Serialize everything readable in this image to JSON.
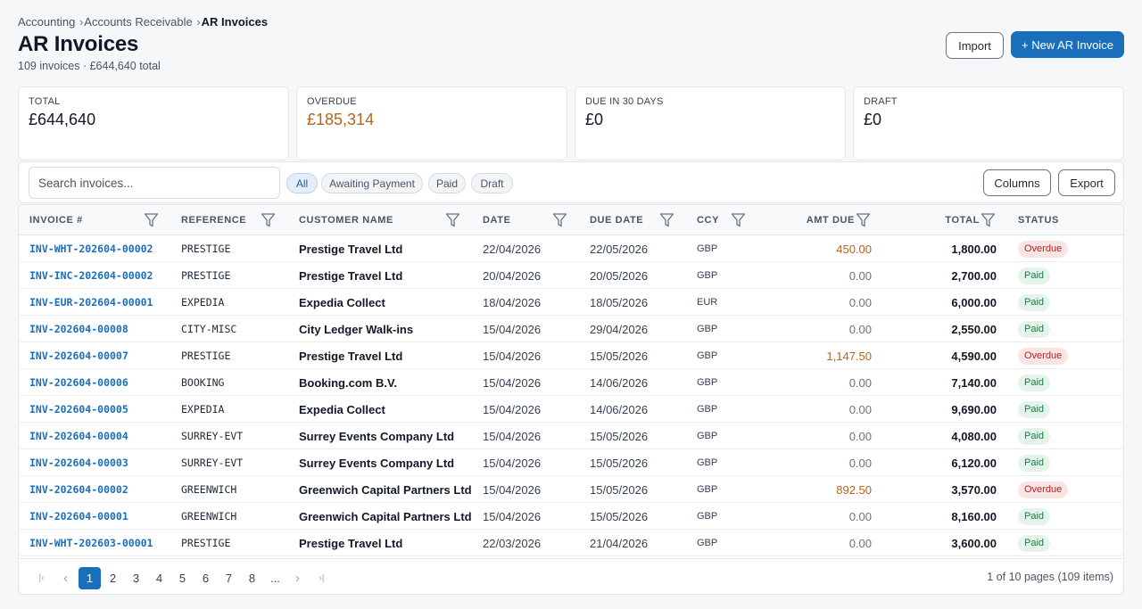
{
  "breadcrumb": {
    "items": [
      "Accounting",
      "Accounts Receivable"
    ],
    "current": "AR Invoices",
    "separator": "›"
  },
  "page": {
    "title": "AR Invoices",
    "subtitle": "109 invoices · £644,640 total"
  },
  "actions": {
    "import_label": "Import",
    "new_label": "+ New AR Invoice"
  },
  "kpis": [
    {
      "label": "TOTAL",
      "value": "£644,640",
      "tone": "normal"
    },
    {
      "label": "OVERDUE",
      "value": "£185,314",
      "tone": "warning"
    },
    {
      "label": "DUE IN 30 DAYS",
      "value": "£0",
      "tone": "normal"
    },
    {
      "label": "DRAFT",
      "value": "£0",
      "tone": "normal"
    }
  ],
  "toolbar": {
    "search_placeholder": "Search invoices...",
    "filters": [
      "All",
      "Awaiting Payment",
      "Paid",
      "Draft"
    ],
    "active_filter": "All",
    "columns_label": "Columns",
    "export_label": "Export"
  },
  "table": {
    "headers": {
      "invoice": "INVOICE #",
      "reference": "REFERENCE",
      "customer": "CUSTOMER NAME",
      "date": "DATE",
      "due_date": "DUE DATE",
      "ccy": "CCY",
      "amt_due": "AMT DUE",
      "total": "TOTAL",
      "status": "STATUS"
    },
    "rows": [
      {
        "invoice": "INV-WHT-202604-00002",
        "reference": "PRESTIGE",
        "customer": "Prestige Travel Ltd",
        "date": "22/04/2026",
        "due_date": "22/05/2026",
        "ccy": "GBP",
        "amt_due": "450.00",
        "total": "1,800.00",
        "status": "Overdue"
      },
      {
        "invoice": "INV-INC-202604-00002",
        "reference": "PRESTIGE",
        "customer": "Prestige Travel Ltd",
        "date": "20/04/2026",
        "due_date": "20/05/2026",
        "ccy": "GBP",
        "amt_due": "0.00",
        "total": "2,700.00",
        "status": "Paid"
      },
      {
        "invoice": "INV-EUR-202604-00001",
        "reference": "EXPEDIA",
        "customer": "Expedia Collect",
        "date": "18/04/2026",
        "due_date": "18/05/2026",
        "ccy": "EUR",
        "amt_due": "0.00",
        "total": "6,000.00",
        "status": "Paid"
      },
      {
        "invoice": "INV-202604-00008",
        "reference": "CITY-MISC",
        "customer": "City Ledger Walk-ins",
        "date": "15/04/2026",
        "due_date": "29/04/2026",
        "ccy": "GBP",
        "amt_due": "0.00",
        "total": "2,550.00",
        "status": "Paid"
      },
      {
        "invoice": "INV-202604-00007",
        "reference": "PRESTIGE",
        "customer": "Prestige Travel Ltd",
        "date": "15/04/2026",
        "due_date": "15/05/2026",
        "ccy": "GBP",
        "amt_due": "1,147.50",
        "total": "4,590.00",
        "status": "Overdue"
      },
      {
        "invoice": "INV-202604-00006",
        "reference": "BOOKING",
        "customer": "Booking.com B.V.",
        "date": "15/04/2026",
        "due_date": "14/06/2026",
        "ccy": "GBP",
        "amt_due": "0.00",
        "total": "7,140.00",
        "status": "Paid"
      },
      {
        "invoice": "INV-202604-00005",
        "reference": "EXPEDIA",
        "customer": "Expedia Collect",
        "date": "15/04/2026",
        "due_date": "14/06/2026",
        "ccy": "GBP",
        "amt_due": "0.00",
        "total": "9,690.00",
        "status": "Paid"
      },
      {
        "invoice": "INV-202604-00004",
        "reference": "SURREY-EVT",
        "customer": "Surrey Events Company Ltd",
        "date": "15/04/2026",
        "due_date": "15/05/2026",
        "ccy": "GBP",
        "amt_due": "0.00",
        "total": "4,080.00",
        "status": "Paid"
      },
      {
        "invoice": "INV-202604-00003",
        "reference": "SURREY-EVT",
        "customer": "Surrey Events Company Ltd",
        "date": "15/04/2026",
        "due_date": "15/05/2026",
        "ccy": "GBP",
        "amt_due": "0.00",
        "total": "6,120.00",
        "status": "Paid"
      },
      {
        "invoice": "INV-202604-00002",
        "reference": "GREENWICH",
        "customer": "Greenwich Capital Partners Ltd",
        "date": "15/04/2026",
        "due_date": "15/05/2026",
        "ccy": "GBP",
        "amt_due": "892.50",
        "total": "3,570.00",
        "status": "Overdue"
      },
      {
        "invoice": "INV-202604-00001",
        "reference": "GREENWICH",
        "customer": "Greenwich Capital Partners Ltd",
        "date": "15/04/2026",
        "due_date": "15/05/2026",
        "ccy": "GBP",
        "amt_due": "0.00",
        "total": "8,160.00",
        "status": "Paid"
      },
      {
        "invoice": "INV-WHT-202603-00001",
        "reference": "PRESTIGE",
        "customer": "Prestige Travel Ltd",
        "date": "22/03/2026",
        "due_date": "21/04/2026",
        "ccy": "GBP",
        "amt_due": "0.00",
        "total": "3,600.00",
        "status": "Paid"
      }
    ]
  },
  "pagination": {
    "first_icon": "first-page-icon",
    "prev_icon": "prev-page-icon",
    "next_icon": "next-page-icon",
    "last_icon": "last-page-icon",
    "pages": [
      "1",
      "2",
      "3",
      "4",
      "5",
      "6",
      "7",
      "8",
      "..."
    ],
    "current": "1",
    "info": "1 of 10 pages (109 items)"
  },
  "colors": {
    "primary": "#1a6fbd",
    "overdue_amount": "#b5651d",
    "paid_badge": "#e5f4ea",
    "overdue_badge": "#fbe4e4"
  }
}
